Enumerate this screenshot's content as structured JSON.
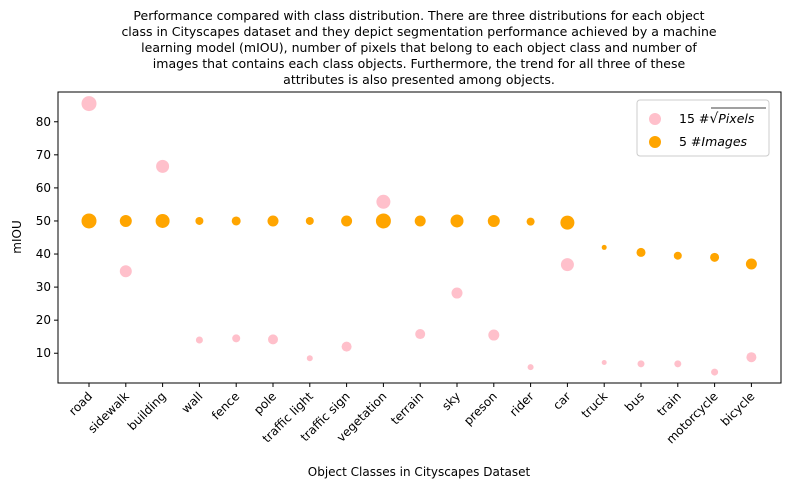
{
  "chart_data": {
    "type": "scatter",
    "title_lines": [
      "Performance compared with class distribution. There are three distributions for each object",
      "class in Cityscapes dataset and they depict segmentation performance achieved by a machine",
      "learning model (mIOU), number of pixels that belong to each object class and number of",
      "images that contains each class objects. Furthermore, the trend for all three of these",
      "attributes is also presented among objects."
    ],
    "xlabel": "Object Classes in Cityscapes Dataset",
    "ylabel": "mIOU",
    "ylim": [
      1,
      89
    ],
    "yticks": [
      10,
      20,
      30,
      40,
      50,
      60,
      70,
      80
    ],
    "categories": [
      "road",
      "sidewalk",
      "building",
      "wall",
      "fence",
      "pole",
      "traffic light",
      "traffic sign",
      "vegetation",
      "terrain",
      "sky",
      "preson",
      "rider",
      "car",
      "truck",
      "bus",
      "train",
      "motorcycle",
      "bicycle"
    ],
    "series": [
      {
        "legend_prefix": "15 #",
        "legend_italic": "Pixels",
        "legend_sqrt": true,
        "color": "#ffc0cb",
        "values": [
          85.5,
          34.8,
          66.5,
          14.0,
          14.5,
          14.2,
          8.5,
          12.0,
          55.8,
          15.8,
          28.2,
          15.5,
          5.8,
          36.8,
          7.2,
          6.8,
          6.8,
          4.3,
          8.8
        ],
        "sizes": [
          14,
          11,
          12,
          6,
          7,
          9,
          5,
          9,
          13,
          9,
          10,
          10,
          5,
          12,
          4,
          6,
          6,
          6,
          9
        ]
      },
      {
        "legend_prefix": "5 #",
        "legend_italic": "Images",
        "legend_sqrt": false,
        "color": "#ffa500",
        "values": [
          50,
          50,
          50,
          50,
          50,
          50,
          50,
          50,
          50,
          50,
          50,
          50,
          49.8,
          49.5,
          42,
          40.5,
          39.5,
          39,
          37
        ],
        "sizes": [
          14,
          11,
          13,
          7,
          8,
          10,
          7,
          10,
          14,
          10,
          12,
          11,
          7,
          13,
          4,
          8,
          7,
          8,
          10
        ]
      }
    ]
  }
}
